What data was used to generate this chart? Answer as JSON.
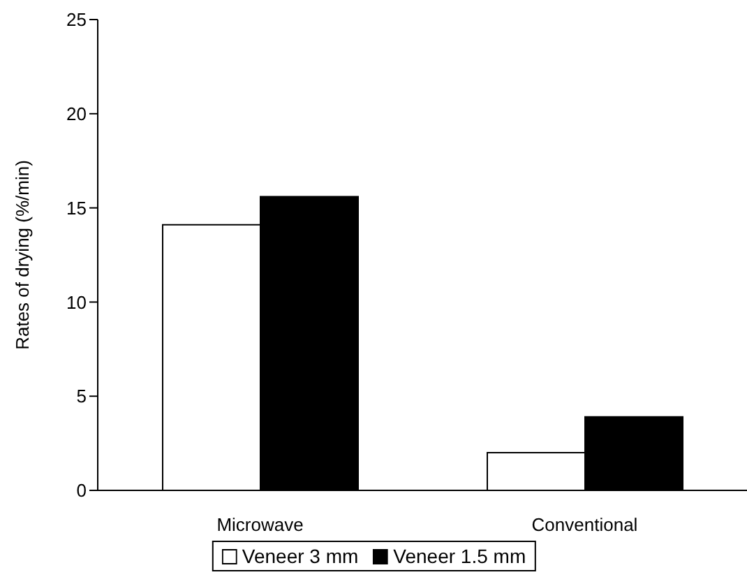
{
  "chart_data": {
    "type": "bar",
    "ylabel": "Rates of drying (%/min)",
    "categories": [
      "Microwave",
      "Conventional"
    ],
    "series": [
      {
        "name": "Veneer 3 mm",
        "color": "#ffffff",
        "values": [
          14.1,
          2.0
        ]
      },
      {
        "name": "Veneer 1.5 mm",
        "color": "#000000",
        "values": [
          15.6,
          3.9
        ]
      }
    ],
    "ylim": [
      0,
      25
    ],
    "yticks": [
      0,
      5,
      10,
      15,
      20,
      25
    ],
    "legend": "bottom"
  }
}
